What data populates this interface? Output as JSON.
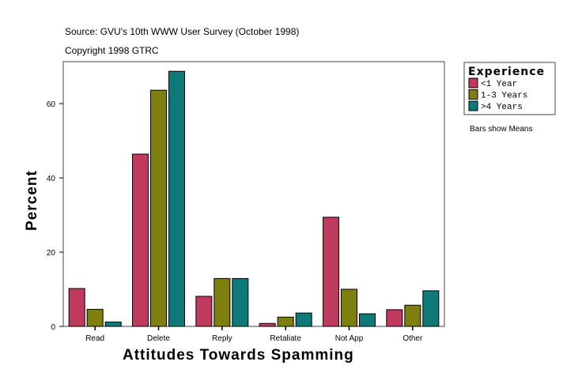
{
  "chart_data": {
    "type": "bar",
    "subtitle": "Source: GVU's 10th WWW User Survey (October 1998)",
    "copyright": "Copyright 1998 GTRC",
    "xlabel": "Attitudes Towards Spamming",
    "ylabel": "Percent",
    "note": "Bars show Means",
    "legend_title": "Experience",
    "legend_position": "right",
    "categories": [
      "Read",
      "Delete",
      "Reply",
      "Retaliate",
      "Not App",
      "Other"
    ],
    "ylim": [
      0,
      71.3
    ],
    "yticks": [
      0,
      20,
      40,
      60
    ],
    "grid": false,
    "series": [
      {
        "name": "<1 Year",
        "color": "#c0395f",
        "values": [
          10.2,
          46.4,
          8.1,
          0.8,
          29.4,
          4.5
        ]
      },
      {
        "name": "1-3 Years",
        "color": "#7f7f10",
        "values": [
          4.6,
          63.6,
          12.9,
          2.5,
          10.0,
          5.7
        ]
      },
      {
        "name": ">4 Years",
        "color": "#0d7a78",
        "values": [
          1.2,
          68.7,
          12.9,
          3.6,
          3.4,
          9.6
        ]
      }
    ]
  }
}
